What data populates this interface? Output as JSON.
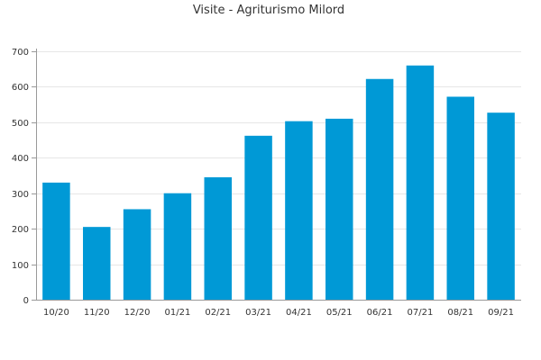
{
  "chart_data": {
    "type": "bar",
    "title": "Visite - Agriturismo Milord",
    "xlabel": "",
    "ylabel": "",
    "categories": [
      "10/20",
      "11/20",
      "12/20",
      "01/21",
      "02/21",
      "03/21",
      "04/21",
      "05/21",
      "06/21",
      "07/21",
      "08/21",
      "09/21"
    ],
    "values": [
      330,
      205,
      255,
      300,
      345,
      462,
      503,
      510,
      622,
      660,
      572,
      527
    ],
    "ylim": [
      0,
      700
    ],
    "yticks": [
      0,
      100,
      200,
      300,
      400,
      500,
      600,
      700
    ],
    "grid": true,
    "legend": "none",
    "bar_color": "#0099d6"
  }
}
